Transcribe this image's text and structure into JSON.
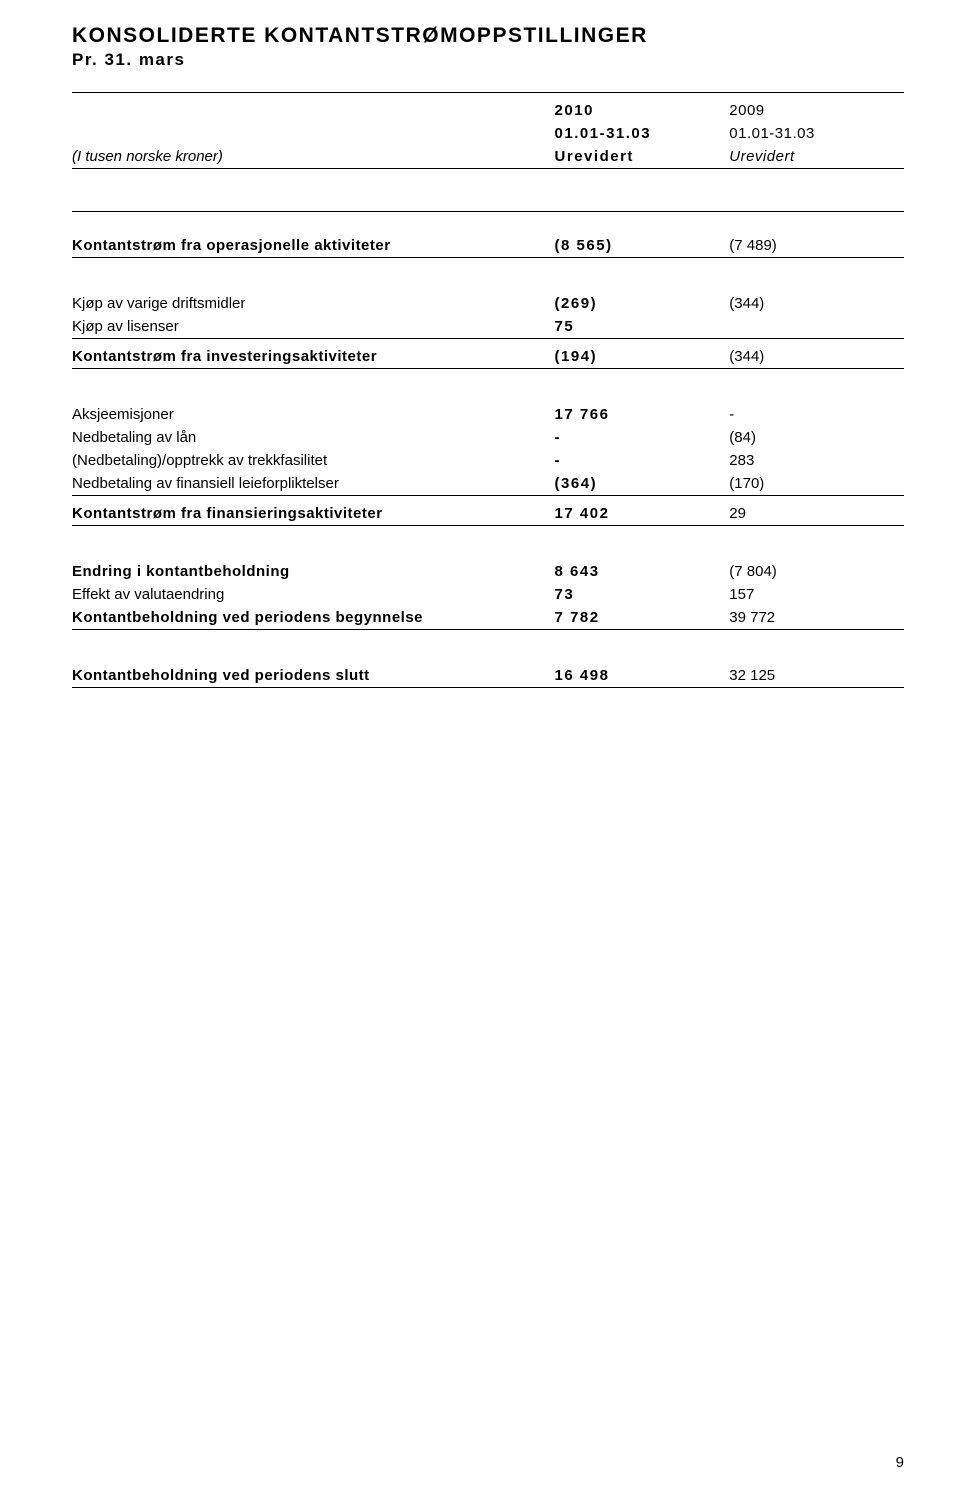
{
  "title": "KONSOLIDERTE KONTANTSTRØMOPPSTILLINGER",
  "subtitle": "Pr. 31. mars",
  "header": {
    "year_current": "2010",
    "year_prior": "2009",
    "period_current": "01.01-31.03",
    "period_prior": "01.01-31.03",
    "note": "(I tusen norske kroner)",
    "basis_current": "Urevidert",
    "basis_prior": "Urevidert"
  },
  "s1": {
    "label": "Kontantstrøm fra operasjonelle aktiviteter",
    "cur": "(8 565)",
    "pri": "(7 489)"
  },
  "buy_assets": {
    "label": "Kjøp av varige driftsmidler",
    "cur": "(269)",
    "pri": "(344)"
  },
  "buy_licenses": {
    "label": "Kjøp av lisenser",
    "cur": "75",
    "pri": ""
  },
  "s2": {
    "label": "Kontantstrøm fra investeringsaktiviteter",
    "cur": "(194)",
    "pri": "(344)"
  },
  "share_issue": {
    "label": "Aksjeemisjoner",
    "cur": "17 766",
    "pri": "-"
  },
  "loan_repay": {
    "label": "Nedbetaling av lån",
    "cur": "-",
    "pri": "(84)"
  },
  "drawdown": {
    "label": "(Nedbetaling)/opptrekk av trekkfasilitet",
    "cur": "-",
    "pri": "283"
  },
  "lease_repay": {
    "label": "Nedbetaling av finansiell leieforpliktelser",
    "cur": "(364)",
    "pri": "(170)"
  },
  "s3": {
    "label": "Kontantstrøm fra finansieringsaktiviteter",
    "cur": "17 402",
    "pri": "29"
  },
  "change_cash": {
    "label": "Endring i kontantbeholdning",
    "cur": "8 643",
    "pri": "(7 804)"
  },
  "fx": {
    "label": "Effekt av valutaendring",
    "cur": "73",
    "pri": "157"
  },
  "cash_begin": {
    "label": "Kontantbeholdning ved periodens begynnelse",
    "cur": "7 782",
    "pri": "39 772"
  },
  "cash_end": {
    "label": "Kontantbeholdning ved periodens slutt",
    "cur": "16 498",
    "pri": "32 125"
  },
  "page_number": "9"
}
